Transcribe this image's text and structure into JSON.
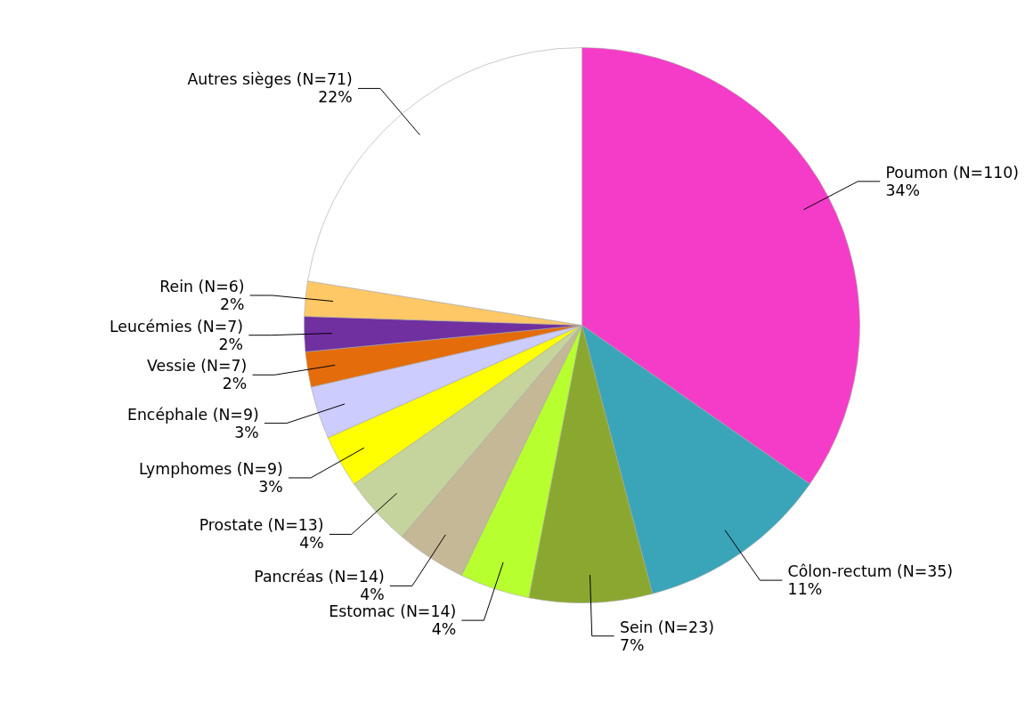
{
  "chart_data": {
    "type": "pie",
    "categories": [
      "Poumon (N=110)",
      "Côlon-rectum (N=35)",
      "Sein (N=23)",
      "Estomac (N=14)",
      "Pancréas (N=14)",
      "Prostate (N=13)",
      "Lymphomes (N=9)",
      "Encéphale (N=9)",
      "Vessie (N=7)",
      "Leucémies (N=7)",
      "Rein (N=6)",
      "Autres sièges (N=71)"
    ],
    "values": [
      34,
      11,
      7,
      4,
      4,
      4,
      3,
      3,
      2,
      2,
      2,
      22
    ],
    "value_labels": [
      "34%",
      "11%",
      "7%",
      "4%",
      "4%",
      "4%",
      "3%",
      "3%",
      "2%",
      "2%",
      "2%",
      "22%"
    ],
    "colors": [
      "#f53cc8",
      "#3aa5b8",
      "#8aa830",
      "#b8ff30",
      "#c4b896",
      "#c4d49c",
      "#ffff00",
      "#ccccff",
      "#e46c0a",
      "#7030a0",
      "#ffc866",
      "#ffffff"
    ]
  }
}
